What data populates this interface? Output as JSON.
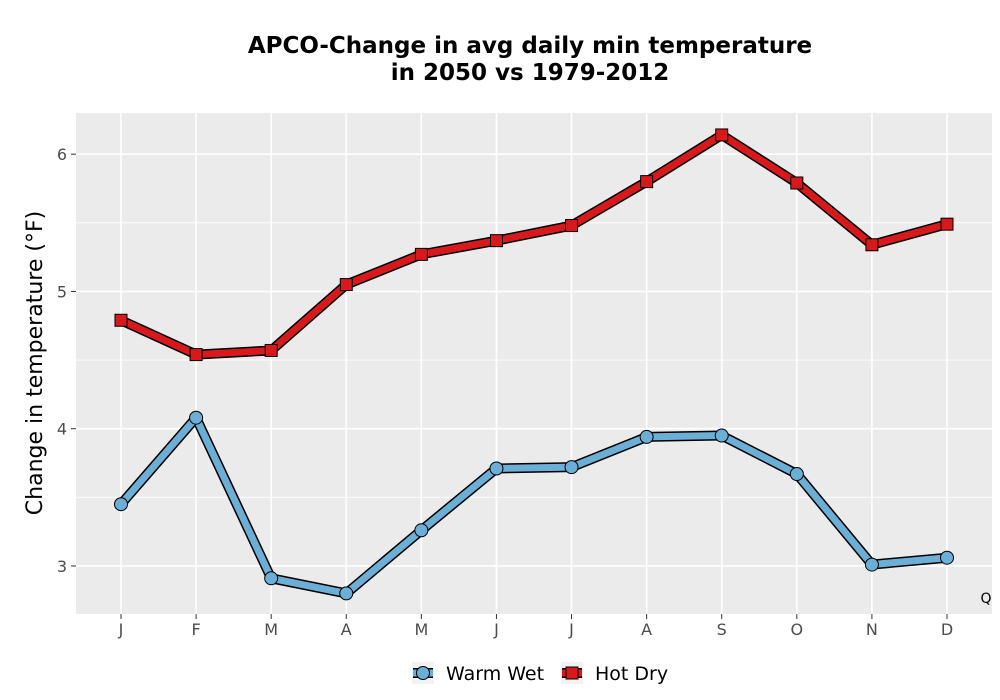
{
  "chart_data": {
    "type": "line",
    "title_line1": "APCO-Change in avg daily min temperature",
    "title_line2": "in 2050 vs 1979-2012",
    "xlabel": "",
    "ylabel": "Change in temperature (°F)",
    "categories": [
      "J",
      "F",
      "M",
      "A",
      "M",
      "J",
      "J",
      "A",
      "S",
      "O",
      "N",
      "D"
    ],
    "yticks": [
      3,
      4,
      5,
      6
    ],
    "ylim": [
      2.65,
      6.3
    ],
    "grid": true,
    "legend_position": "bottom",
    "corner_label": "Q",
    "series": [
      {
        "name": "Warm Wet",
        "marker": "circle",
        "color": "#6baed6",
        "values": [
          3.45,
          4.08,
          2.91,
          2.8,
          3.26,
          3.71,
          3.72,
          3.94,
          3.95,
          3.67,
          3.01,
          3.06
        ]
      },
      {
        "name": "Hot Dry",
        "marker": "square",
        "color": "#d7191c",
        "values": [
          4.79,
          4.54,
          4.57,
          5.05,
          5.27,
          5.37,
          5.48,
          5.8,
          6.14,
          5.79,
          5.34,
          5.49
        ]
      }
    ]
  },
  "colors": {
    "panel_background": "#ebebeb",
    "grid": "#ffffff",
    "outline": "#000000"
  }
}
